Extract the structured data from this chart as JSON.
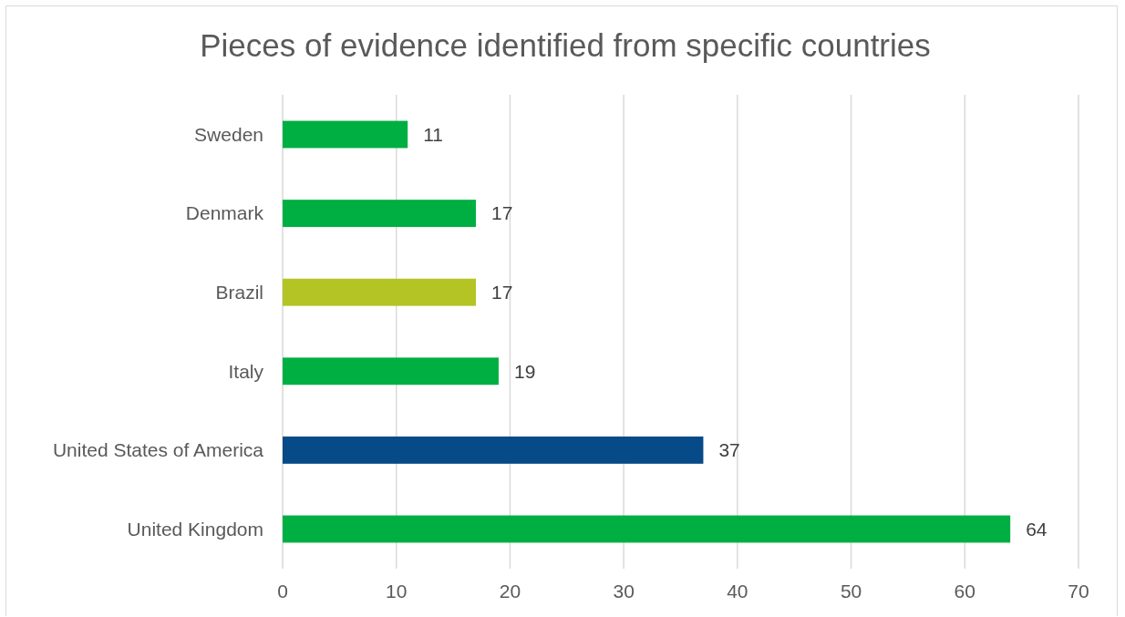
{
  "chart_data": {
    "type": "bar",
    "orientation": "horizontal",
    "title": "Pieces of evidence identified from specific countries",
    "categories": [
      "Sweden",
      "Denmark",
      "Brazil",
      "Italy",
      "United States of America",
      "United Kingdom"
    ],
    "values": [
      11,
      17,
      17,
      19,
      37,
      64
    ],
    "colors": [
      "#00af41",
      "#00af41",
      "#b4c424",
      "#00af41",
      "#064a87",
      "#00af41"
    ],
    "xlim": [
      0,
      70
    ],
    "xticks": [
      0,
      10,
      20,
      30,
      40,
      50,
      60,
      70
    ],
    "grid": "x",
    "data_labels": true
  }
}
